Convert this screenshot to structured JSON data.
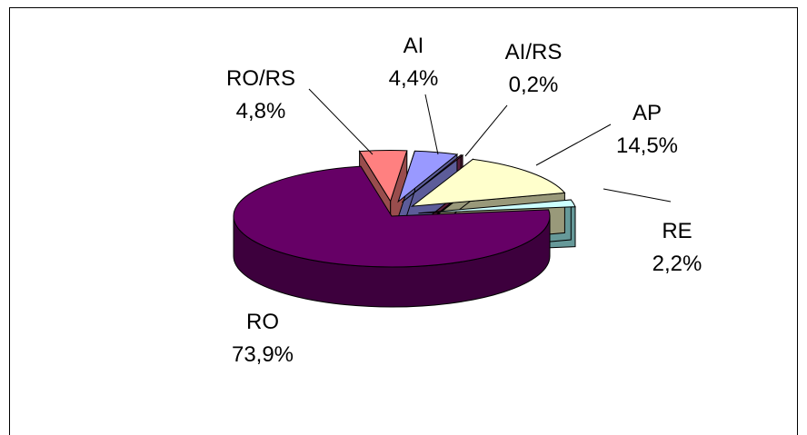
{
  "chart_data": {
    "type": "pie",
    "title": "",
    "legend": "none",
    "slices": [
      {
        "name": "AI",
        "value": 4.4,
        "label_value": "4,4%",
        "color": "#9999ff"
      },
      {
        "name": "AI/RS",
        "value": 0.2,
        "label_value": "0,2%",
        "color": "#993366"
      },
      {
        "name": "AP",
        "value": 14.5,
        "label_value": "14,5%",
        "color": "#ffffcc"
      },
      {
        "name": "RE",
        "value": 2.2,
        "label_value": "2,2%",
        "color": "#ccffff"
      },
      {
        "name": "RO",
        "value": 73.9,
        "label_value": "73,9%",
        "color": "#660066"
      },
      {
        "name": "RO/RS",
        "value": 4.8,
        "label_value": "4,8%",
        "color": "#ff8080"
      }
    ],
    "slice_side_colors": {
      "AI": "#5c5c99",
      "AI/RS": "#5c1f3d",
      "AP": "#99997a",
      "RE": "#669999",
      "RO": "#3d003d",
      "RO/RS": "#994d4d"
    },
    "exploded": [
      "AI",
      "AI/RS",
      "AP",
      "RE",
      "RO/RS"
    ]
  }
}
